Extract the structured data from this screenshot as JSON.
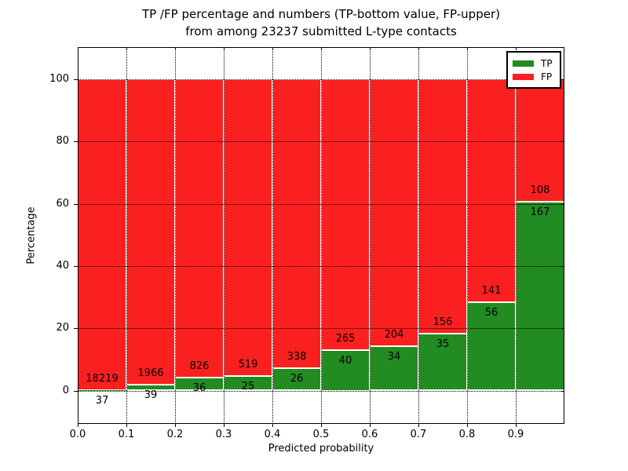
{
  "title": {
    "line1": "TP /FP percentage and numbers (TP-bottom value, FP-upper)",
    "line2": "from among 23237 submitted L-type contacts"
  },
  "chart_data": {
    "type": "bar",
    "stacked": true,
    "normalized": "each 0.1-wide bin is scaled to 100%, green TP share at bottom, red FP share above",
    "bin_width": 0.1,
    "bin_starts": [
      0.0,
      0.1,
      0.2,
      0.3,
      0.4,
      0.5,
      0.6,
      0.7,
      0.8,
      0.9
    ],
    "series": [
      {
        "name": "TP",
        "color": "#228b22",
        "values": [
          37,
          39,
          36,
          25,
          26,
          40,
          34,
          35,
          56,
          167
        ]
      },
      {
        "name": "FP",
        "color": "#fb2020",
        "values": [
          18219,
          1966,
          826,
          519,
          338,
          265,
          204,
          156,
          141,
          108
        ]
      }
    ],
    "value_labels": "FP count printed just above the TP/FP boundary, TP count just below it, centered on each bar",
    "total_contacts": 23237,
    "xlabel": "Predicted probability",
    "ylabel": "Percentage",
    "x_tick_labels": [
      "0.0",
      "0.1",
      "0.2",
      "0.3",
      "0.4",
      "0.5",
      "0.6",
      "0.7",
      "0.8",
      "0.9"
    ],
    "y_ticks": [
      0,
      20,
      40,
      60,
      80,
      100
    ],
    "y_tick_labels": [
      "0",
      "20",
      "40",
      "60",
      "80",
      "100"
    ],
    "xlim": [
      0.0,
      1.0
    ],
    "ylim_percent": [
      -10.7,
      110.4
    ],
    "grid": {
      "style": "dotted",
      "color": "#000000"
    },
    "bar_edge_color": "#ffffff",
    "background": "#ffffff",
    "legend": {
      "position": "upper-right",
      "entries": [
        "TP",
        "FP"
      ]
    }
  }
}
